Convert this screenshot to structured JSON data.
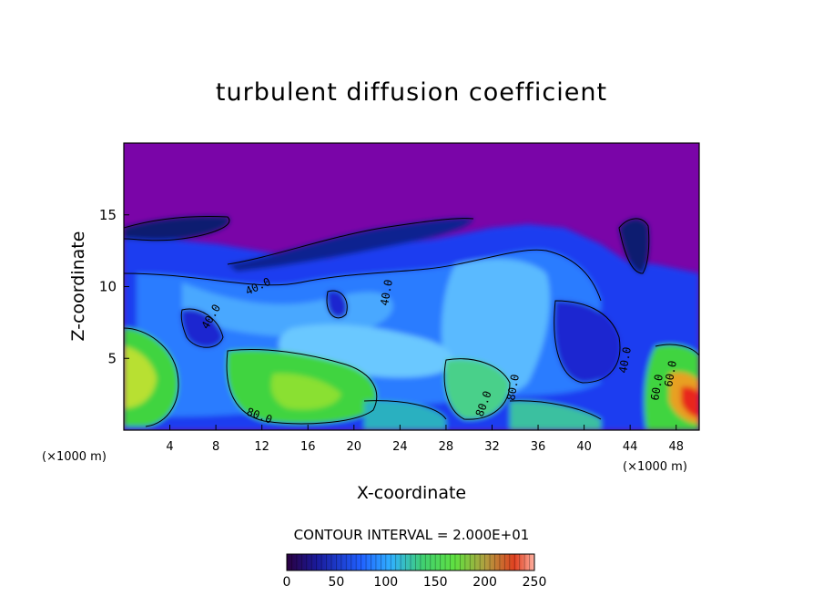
{
  "chart_data": {
    "type": "heatmap",
    "title": "turbulent diffusion coefficient",
    "xlabel": "X-coordinate",
    "ylabel": "Z-coordinate",
    "x_unit": "(×1000 m)",
    "z_unit": "(×1000 m)",
    "xlim": [
      0,
      50
    ],
    "ylim": [
      0,
      20
    ],
    "xticks": [
      4,
      8,
      12,
      16,
      20,
      24,
      28,
      32,
      36,
      40,
      44,
      48
    ],
    "yticks": [
      5,
      10,
      15
    ],
    "contour_interval": "CONTOUR INTERVAL = 2.000E+01",
    "colorbar": {
      "min": 0,
      "max": 250,
      "ticks": [
        0,
        50,
        100,
        150,
        200,
        250
      ]
    },
    "contour_labels": [
      "40.0",
      "40.0",
      "40.0",
      "40.0",
      "80.0",
      "80.0",
      "80.0",
      "60.0",
      "60.0"
    ],
    "colors": {
      "background_top": "#7a05a8",
      "low": "#1a1acc",
      "mid": "#3aa0ff",
      "high": "#3fd43f",
      "peak": "#e8251a"
    }
  }
}
